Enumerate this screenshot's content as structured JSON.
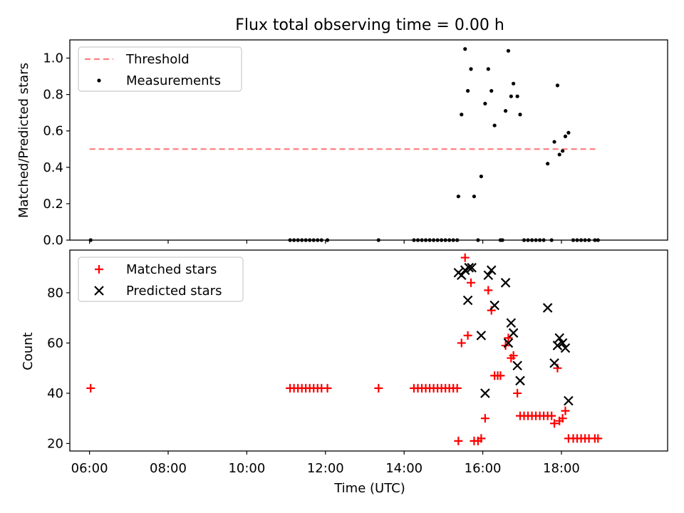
{
  "chart_data": [
    {
      "type": "scatter",
      "title": "Flux total observing time = 0.00 h",
      "xlabel": "",
      "ylabel": "Matched/Predicted stars",
      "xlim": [
        5.5,
        20.7
      ],
      "ylim": [
        0,
        1.1
      ],
      "yticks": [
        0.0,
        0.2,
        0.4,
        0.6,
        0.8,
        1.0
      ],
      "ytick_labels": [
        "0.0",
        "0.2",
        "0.4",
        "0.6",
        "0.8",
        "1.0"
      ],
      "legend_position": "upper-left",
      "series": [
        {
          "name": "Threshold",
          "kind": "dashed-line",
          "color": "#ff8080",
          "points": [
            [
              6.0,
              0.5
            ],
            [
              18.9,
              0.5
            ]
          ]
        },
        {
          "name": "Measurements",
          "kind": "dot",
          "color": "#000000",
          "points": [
            [
              6.03,
              0.0
            ],
            [
              11.1,
              0.0
            ],
            [
              11.2,
              0.0
            ],
            [
              11.3,
              0.0
            ],
            [
              11.4,
              0.0
            ],
            [
              11.5,
              0.0
            ],
            [
              11.6,
              0.0
            ],
            [
              11.7,
              0.0
            ],
            [
              11.8,
              0.0
            ],
            [
              11.9,
              0.0
            ],
            [
              12.05,
              0.0
            ],
            [
              13.35,
              0.0
            ],
            [
              14.25,
              0.0
            ],
            [
              14.35,
              0.0
            ],
            [
              14.45,
              0.0
            ],
            [
              14.55,
              0.0
            ],
            [
              14.65,
              0.0
            ],
            [
              14.75,
              0.0
            ],
            [
              14.85,
              0.0
            ],
            [
              14.95,
              0.0
            ],
            [
              15.05,
              0.0
            ],
            [
              15.15,
              0.0
            ],
            [
              15.25,
              0.0
            ],
            [
              15.35,
              0.0
            ],
            [
              15.38,
              0.24
            ],
            [
              15.46,
              0.69
            ],
            [
              15.55,
              1.05
            ],
            [
              15.62,
              0.82
            ],
            [
              15.7,
              0.94
            ],
            [
              15.78,
              0.24
            ],
            [
              15.88,
              0.0
            ],
            [
              15.96,
              0.35
            ],
            [
              16.06,
              0.75
            ],
            [
              16.14,
              0.94
            ],
            [
              16.22,
              0.82
            ],
            [
              16.3,
              0.63
            ],
            [
              16.45,
              0.0
            ],
            [
              16.5,
              0.0
            ],
            [
              16.58,
              0.71
            ],
            [
              16.65,
              1.04
            ],
            [
              16.72,
              0.79
            ],
            [
              16.78,
              0.86
            ],
            [
              16.88,
              0.79
            ],
            [
              16.95,
              0.69
            ],
            [
              17.05,
              0.0
            ],
            [
              17.15,
              0.0
            ],
            [
              17.25,
              0.0
            ],
            [
              17.35,
              0.0
            ],
            [
              17.45,
              0.0
            ],
            [
              17.55,
              0.0
            ],
            [
              17.65,
              0.42
            ],
            [
              17.75,
              0.0
            ],
            [
              17.82,
              0.54
            ],
            [
              17.9,
              0.85
            ],
            [
              17.95,
              0.47
            ],
            [
              18.03,
              0.49
            ],
            [
              18.1,
              0.57
            ],
            [
              18.18,
              0.59
            ],
            [
              18.3,
              0.0
            ],
            [
              18.4,
              0.0
            ],
            [
              18.5,
              0.0
            ],
            [
              18.6,
              0.0
            ],
            [
              18.7,
              0.0
            ],
            [
              18.85,
              0.0
            ],
            [
              18.93,
              0.0
            ]
          ]
        }
      ]
    },
    {
      "type": "scatter",
      "title": "",
      "xlabel": "Time (UTC)",
      "ylabel": "Count",
      "xlim": [
        5.5,
        20.7
      ],
      "ylim": [
        17,
        97
      ],
      "yticks": [
        20,
        40,
        60,
        80
      ],
      "ytick_labels": [
        "20",
        "40",
        "60",
        "80"
      ],
      "xticks": [
        6,
        8,
        10,
        12,
        14,
        16,
        18
      ],
      "xtick_labels": [
        "06:00",
        "08:00",
        "10:00",
        "12:00",
        "14:00",
        "16:00",
        "18:00"
      ],
      "legend_position": "upper-left",
      "series": [
        {
          "name": "Matched stars",
          "kind": "plus",
          "color": "#ff0000",
          "points": [
            [
              6.03,
              42
            ],
            [
              11.1,
              42
            ],
            [
              11.2,
              42
            ],
            [
              11.3,
              42
            ],
            [
              11.4,
              42
            ],
            [
              11.5,
              42
            ],
            [
              11.6,
              42
            ],
            [
              11.7,
              42
            ],
            [
              11.8,
              42
            ],
            [
              11.9,
              42
            ],
            [
              12.05,
              42
            ],
            [
              13.35,
              42
            ],
            [
              14.25,
              42
            ],
            [
              14.35,
              42
            ],
            [
              14.45,
              42
            ],
            [
              14.55,
              42
            ],
            [
              14.65,
              42
            ],
            [
              14.75,
              42
            ],
            [
              14.85,
              42
            ],
            [
              14.95,
              42
            ],
            [
              15.05,
              42
            ],
            [
              15.15,
              42
            ],
            [
              15.25,
              42
            ],
            [
              15.35,
              42
            ],
            [
              15.38,
              21
            ],
            [
              15.46,
              60
            ],
            [
              15.55,
              94
            ],
            [
              15.62,
              63
            ],
            [
              15.7,
              84
            ],
            [
              15.78,
              21
            ],
            [
              15.88,
              21
            ],
            [
              15.96,
              22
            ],
            [
              16.06,
              30
            ],
            [
              16.14,
              81
            ],
            [
              16.22,
              73
            ],
            [
              16.3,
              47
            ],
            [
              16.38,
              47
            ],
            [
              16.45,
              47
            ],
            [
              16.58,
              59
            ],
            [
              16.65,
              62
            ],
            [
              16.72,
              54
            ],
            [
              16.78,
              55
            ],
            [
              16.88,
              40
            ],
            [
              16.95,
              31
            ],
            [
              17.05,
              31
            ],
            [
              17.15,
              31
            ],
            [
              17.25,
              31
            ],
            [
              17.35,
              31
            ],
            [
              17.45,
              31
            ],
            [
              17.55,
              31
            ],
            [
              17.65,
              31
            ],
            [
              17.75,
              31
            ],
            [
              17.82,
              28
            ],
            [
              17.9,
              50
            ],
            [
              17.95,
              29
            ],
            [
              18.03,
              30
            ],
            [
              18.1,
              33
            ],
            [
              18.18,
              22
            ],
            [
              18.3,
              22
            ],
            [
              18.4,
              22
            ],
            [
              18.5,
              22
            ],
            [
              18.6,
              22
            ],
            [
              18.7,
              22
            ],
            [
              18.85,
              22
            ],
            [
              18.93,
              22
            ]
          ]
        },
        {
          "name": "Predicted stars",
          "kind": "x",
          "color": "#000000",
          "points": [
            [
              15.38,
              88
            ],
            [
              15.46,
              87
            ],
            [
              15.55,
              89
            ],
            [
              15.62,
              77
            ],
            [
              15.65,
              90
            ],
            [
              15.72,
              90
            ],
            [
              15.96,
              63
            ],
            [
              16.06,
              40
            ],
            [
              16.14,
              87
            ],
            [
              16.22,
              89
            ],
            [
              16.3,
              75
            ],
            [
              16.58,
              84
            ],
            [
              16.65,
              60
            ],
            [
              16.72,
              68
            ],
            [
              16.78,
              64
            ],
            [
              16.88,
              51
            ],
            [
              16.95,
              45
            ],
            [
              17.65,
              74
            ],
            [
              17.82,
              52
            ],
            [
              17.9,
              59
            ],
            [
              17.95,
              62
            ],
            [
              18.03,
              60
            ],
            [
              18.1,
              58
            ],
            [
              18.18,
              37
            ]
          ]
        }
      ]
    }
  ]
}
